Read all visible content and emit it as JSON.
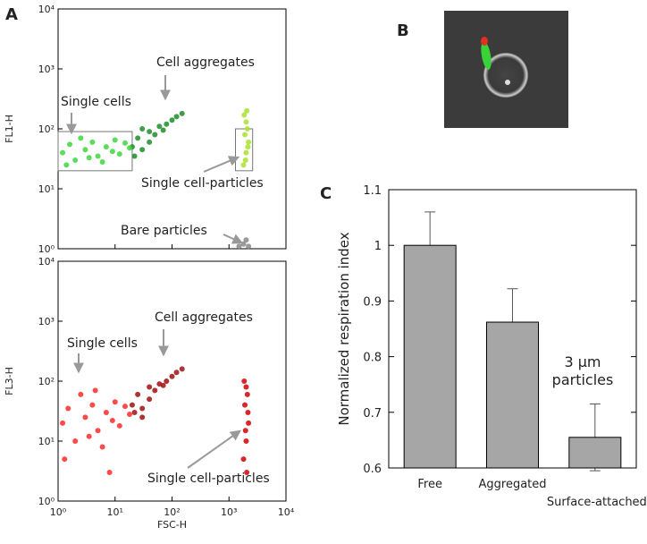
{
  "panel_labels": [
    "A",
    "B",
    "C"
  ],
  "chart_data": [
    {
      "type": "scatter",
      "ylabel": "FL1-H",
      "xscale": "log",
      "yscale": "log",
      "xlim": [
        1,
        10000
      ],
      "ylim": [
        1,
        10000
      ],
      "xticks": [
        1,
        10,
        100,
        1000,
        10000
      ],
      "yticks": [
        {
          "value": 1,
          "label": "10⁰"
        },
        {
          "value": 10,
          "label": "10¹"
        },
        {
          "value": 100,
          "label": "10²"
        },
        {
          "value": 1000,
          "label": "10³"
        },
        {
          "value": 10000,
          "label": "10⁴"
        }
      ],
      "annotations": [
        "Cell aggregates",
        "Single cells",
        "Single cell-particles",
        "Bare particles"
      ],
      "gates": [
        {
          "x": [
            1,
            20
          ],
          "y": [
            20,
            90
          ]
        },
        {
          "x": [
            1300,
            2600
          ],
          "y": [
            20,
            100
          ]
        }
      ],
      "series": [
        {
          "color": "#3ed63e",
          "x": [
            1.2,
            1.6,
            2,
            3,
            4,
            5,
            7,
            9,
            12,
            15,
            18,
            2.5,
            6,
            10,
            1.4,
            3.5
          ],
          "y": [
            40,
            55,
            30,
            45,
            60,
            35,
            50,
            42,
            38,
            58,
            48,
            70,
            28,
            65,
            25,
            33
          ]
        },
        {
          "color": "#1e8c2a",
          "x": [
            20,
            25,
            30,
            40,
            50,
            60,
            80,
            100,
            120,
            40,
            70,
            30,
            150,
            22
          ],
          "y": [
            50,
            70,
            45,
            90,
            80,
            110,
            120,
            140,
            160,
            60,
            95,
            100,
            180,
            35
          ]
        },
        {
          "color": "#a8e22a",
          "x": [
            1800,
            2000,
            2200,
            1900,
            2100,
            2000,
            1850,
            2050,
            1950,
            2150
          ],
          "y": [
            25,
            40,
            60,
            80,
            100,
            130,
            170,
            200,
            30,
            50
          ]
        },
        {
          "color": "#888888",
          "x": [
            1500,
            1800,
            2000,
            2200
          ],
          "y": [
            1.1,
            1.2,
            1.4,
            1.1
          ]
        }
      ]
    },
    {
      "type": "scatter",
      "xlabel": "FSC-H",
      "ylabel": "FL3-H",
      "xscale": "log",
      "yscale": "log",
      "xlim": [
        1,
        10000
      ],
      "ylim": [
        1,
        10000
      ],
      "xticks": [
        {
          "value": 1,
          "label": "10⁰"
        },
        {
          "value": 10,
          "label": "10¹"
        },
        {
          "value": 100,
          "label": "10²"
        },
        {
          "value": 1000,
          "label": "10³"
        },
        {
          "value": 10000,
          "label": "10⁴"
        }
      ],
      "yticks": [
        {
          "value": 1,
          "label": "10⁰"
        },
        {
          "value": 10,
          "label": "10¹"
        },
        {
          "value": 100,
          "label": "10²"
        },
        {
          "value": 1000,
          "label": "10³"
        },
        {
          "value": 10000,
          "label": "10⁴"
        }
      ],
      "annotations": [
        "Cell aggregates",
        "Single cells",
        "Single cell-particles"
      ],
      "series": [
        {
          "color": "#ff2a2a",
          "x": [
            1.2,
            1.5,
            2,
            3,
            4,
            5,
            7,
            9,
            12,
            15,
            18,
            2.5,
            6,
            10,
            1.3,
            3.5,
            8,
            4.5
          ],
          "y": [
            20,
            35,
            10,
            25,
            40,
            15,
            30,
            22,
            18,
            38,
            28,
            60,
            8,
            45,
            5,
            12,
            3,
            70
          ]
        },
        {
          "color": "#a01010",
          "x": [
            20,
            25,
            30,
            40,
            50,
            60,
            80,
            100,
            120,
            40,
            70,
            30,
            150,
            22
          ],
          "y": [
            40,
            60,
            35,
            80,
            70,
            90,
            100,
            120,
            140,
            50,
            85,
            25,
            160,
            30
          ]
        },
        {
          "color": "#d40000",
          "x": [
            1800,
            2000,
            2200,
            1900,
            2100,
            2000,
            1850,
            2050,
            1950,
            2150
          ],
          "y": [
            5,
            10,
            20,
            40,
            60,
            80,
            100,
            3,
            15,
            30
          ]
        }
      ]
    },
    {
      "type": "bar",
      "ylabel": "Normalized respiration index",
      "annotation": [
        "3 μm",
        "particles"
      ],
      "categories": [
        "Free",
        "Aggregated",
        "Surface-attached"
      ],
      "values": [
        1.0,
        0.862,
        0.655
      ],
      "errors": [
        0.06,
        0.06,
        0.06
      ],
      "color": "#a6a6a6",
      "ylim": [
        0.6,
        1.1
      ],
      "yticks": [
        0.6,
        0.7,
        0.8,
        0.9,
        1,
        1.1
      ]
    }
  ]
}
